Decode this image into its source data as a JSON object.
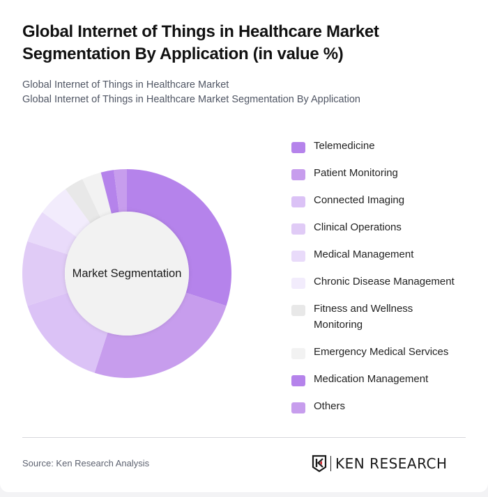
{
  "header": {
    "title": "Global Internet of Things in Healthcare Market Segmentation By Application (in value %)",
    "subtitle_line1": "Global Internet of Things in Healthcare Market",
    "subtitle_line2": "Global Internet of Things in Healthcare Market Segmentation By Application"
  },
  "chart_data": {
    "type": "pie",
    "subtype": "donut",
    "title": "Global Internet of Things in Healthcare Market Segmentation By Application (in value %)",
    "center_label": "Market Segmentation",
    "legend_position": "right",
    "categories": [
      "Telemedicine",
      "Patient Monitoring",
      "Connected Imaging",
      "Clinical Operations",
      "Medical Management",
      "Chronic Disease Management",
      "Fitness and Wellness Monitoring",
      "Emergency Medical Services",
      "Medication Management",
      "Others"
    ],
    "values": [
      30,
      25,
      15,
      10,
      5,
      5,
      3,
      3,
      2,
      2
    ],
    "colors": [
      "#b583eb",
      "#c79ded",
      "#dbc2f6",
      "#e0cbf6",
      "#e9dbfa",
      "#f2ecfc",
      "#e8e8e8",
      "#f2f2f2",
      "#b583eb",
      "#c79ded"
    ],
    "unit": "%"
  },
  "legend": {
    "items": [
      {
        "label": "Telemedicine",
        "color": "#b583eb"
      },
      {
        "label": "Patient Monitoring",
        "color": "#c79ded"
      },
      {
        "label": "Connected Imaging",
        "color": "#dbc2f6"
      },
      {
        "label": "Clinical Operations",
        "color": "#e0cbf6"
      },
      {
        "label": "Medical Management",
        "color": "#e9dbfa"
      },
      {
        "label": "Chronic Disease Management",
        "color": "#f2ecfc"
      },
      {
        "label": "Fitness and Wellness Monitoring",
        "color": "#e8e8e8"
      },
      {
        "label": "Emergency Medical Services",
        "color": "#f2f2f2"
      },
      {
        "label": "Medication Management",
        "color": "#b583eb"
      },
      {
        "label": "Others",
        "color": "#c79ded"
      }
    ]
  },
  "footer": {
    "source": "Source: Ken Research Analysis",
    "logo_text": "KEN RESEARCH"
  }
}
